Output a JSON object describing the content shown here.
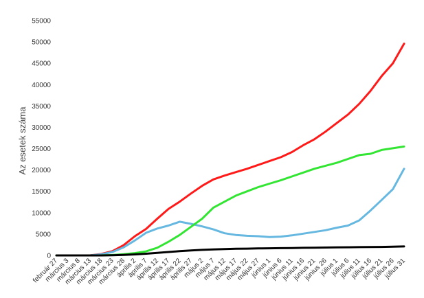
{
  "chart_data": {
    "type": "line",
    "title": "",
    "xlabel": "",
    "ylabel": "Az esetek száma",
    "ylim": [
      0,
      55000
    ],
    "y_ticks": [
      0,
      5000,
      10000,
      15000,
      20000,
      25000,
      30000,
      35000,
      40000,
      45000,
      50000,
      55000
    ],
    "grid": false,
    "legend": "none",
    "x_categories": [
      "február 27",
      "március 3",
      "március 8",
      "március 13",
      "március 18",
      "március 23",
      "március 28",
      "április 2",
      "április 7",
      "április 12",
      "április 17",
      "április 22",
      "április 27",
      "május 2",
      "május 7",
      "május 12",
      "május 17",
      "május 22",
      "május 27",
      "június 1",
      "június 6",
      "június 11",
      "június 16",
      "június 21",
      "június 26",
      "július 1",
      "július 6",
      "július 11",
      "július 16",
      "július 21",
      "július 26",
      "július 31"
    ],
    "series": [
      {
        "color": "#ff1a1a",
        "values": [
          0,
          0,
          0,
          0,
          350,
          1000,
          2400,
          4500,
          6200,
          8600,
          10900,
          12600,
          14500,
          16300,
          17800,
          18700,
          19500,
          20300,
          21200,
          22100,
          23000,
          24200,
          25800,
          27200,
          29000,
          31000,
          33000,
          35500,
          38500,
          42000,
          45000,
          49600
        ]
      },
      {
        "color": "#66b8e0",
        "values": [
          0,
          0,
          0,
          0,
          250,
          800,
          1900,
          3500,
          5300,
          6300,
          7000,
          7900,
          7400,
          6800,
          6100,
          5200,
          4800,
          4600,
          4500,
          4300,
          4400,
          4700,
          5100,
          5500,
          5900,
          6500,
          7000,
          8200,
          10500,
          13000,
          15500,
          20300
        ]
      },
      {
        "color": "#33e533",
        "values": [
          0,
          0,
          0,
          0,
          20,
          100,
          280,
          550,
          950,
          1800,
          3200,
          4800,
          6700,
          8600,
          11200,
          12600,
          14000,
          15000,
          16000,
          16800,
          17600,
          18500,
          19400,
          20300,
          21000,
          21700,
          22600,
          23500,
          23800,
          24700,
          25100,
          25500
        ]
      },
      {
        "color": "#000000",
        "values": [
          0,
          0,
          0,
          0,
          5,
          40,
          120,
          240,
          400,
          600,
          800,
          1000,
          1150,
          1300,
          1420,
          1500,
          1560,
          1600,
          1640,
          1680,
          1700,
          1740,
          1780,
          1820,
          1850,
          1880,
          1920,
          1950,
          1970,
          2000,
          2040,
          2100
        ]
      }
    ]
  }
}
